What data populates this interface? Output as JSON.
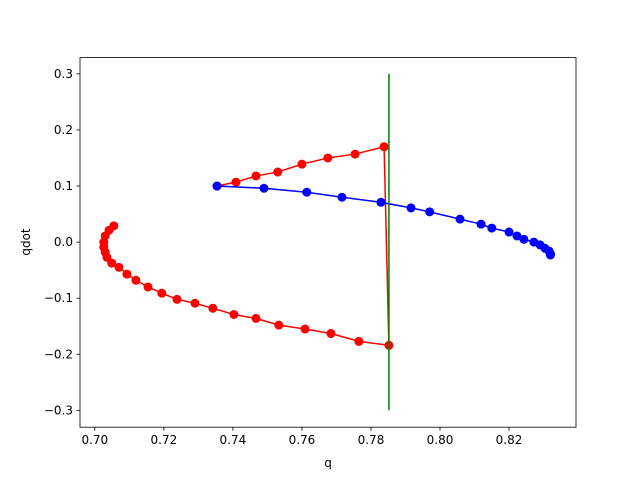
{
  "chart_data": {
    "type": "line",
    "xlabel": "q",
    "ylabel": "qdot",
    "xlim": [
      0.6957,
      0.8394
    ],
    "ylim": [
      -0.33,
      0.329
    ],
    "xticks": [
      {
        "value": 0.7,
        "label": "0.70"
      },
      {
        "value": 0.72,
        "label": "0.72"
      },
      {
        "value": 0.74,
        "label": "0.74"
      },
      {
        "value": 0.76,
        "label": "0.76"
      },
      {
        "value": 0.78,
        "label": "0.78"
      },
      {
        "value": 0.8,
        "label": "0.80"
      },
      {
        "value": 0.82,
        "label": "0.82"
      }
    ],
    "yticks": [
      {
        "value": -0.3,
        "label": "−0.3"
      },
      {
        "value": -0.2,
        "label": "−0.2"
      },
      {
        "value": -0.1,
        "label": "−0.1"
      },
      {
        "value": 0.0,
        "label": "0.0"
      },
      {
        "value": 0.1,
        "label": "0.1"
      },
      {
        "value": 0.2,
        "label": "0.2"
      },
      {
        "value": 0.3,
        "label": "0.3"
      }
    ],
    "series": [
      {
        "color": "#ff0000",
        "marker": true,
        "x": [
          0.7055,
          0.7041,
          0.703,
          0.7026,
          0.7026,
          0.703,
          0.7035,
          0.7049,
          0.707,
          0.7093,
          0.7119,
          0.7154,
          0.7194,
          0.7238,
          0.729,
          0.7342,
          0.7403,
          0.7467,
          0.7533,
          0.7609,
          0.7684,
          0.7765,
          0.7852,
          0.7838,
          0.7754,
          0.7675,
          0.76,
          0.753,
          0.7467,
          0.7409,
          0.7354
        ],
        "y": [
          0.029,
          0.021,
          0.011,
          0.0,
          -0.009,
          -0.018,
          -0.027,
          -0.0375,
          -0.045,
          -0.057,
          -0.068,
          -0.08,
          -0.091,
          -0.102,
          -0.109,
          -0.118,
          -0.129,
          -0.136,
          -0.148,
          -0.155,
          -0.163,
          -0.177,
          -0.184,
          0.17,
          0.157,
          0.15,
          0.139,
          0.125,
          0.118,
          0.107,
          0.1
        ]
      },
      {
        "color": "#0000ff",
        "marker": true,
        "x": [
          0.7354,
          0.749,
          0.7614,
          0.7716,
          0.7829,
          0.7916,
          0.797,
          0.8058,
          0.8119,
          0.815,
          0.82,
          0.8223,
          0.8243,
          0.8272,
          0.829,
          0.8304,
          0.8316,
          0.832,
          0.832
        ],
        "y": [
          0.1,
          0.096,
          0.089,
          0.08,
          0.071,
          0.061,
          0.054,
          0.041,
          0.032,
          0.025,
          0.018,
          0.011,
          0.005,
          0.0,
          -0.005,
          -0.011,
          -0.016,
          -0.021,
          -0.023
        ]
      },
      {
        "color": "#008000",
        "marker": false,
        "x": [
          0.7852,
          0.7852
        ],
        "y": [
          0.3,
          -0.3
        ]
      }
    ]
  }
}
